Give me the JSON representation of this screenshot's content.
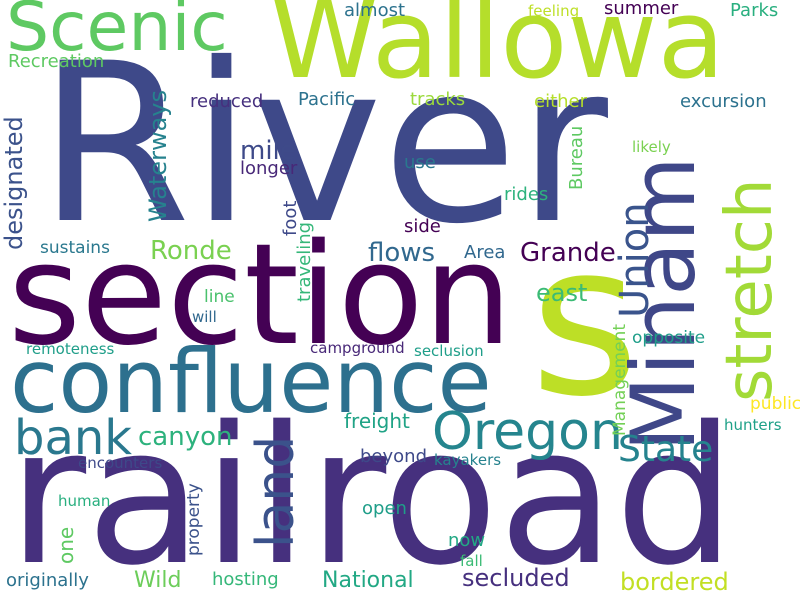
{
  "words": [
    {
      "text": "River",
      "color": "#3e4989"
    },
    {
      "text": "railroad",
      "color": "#46307e"
    },
    {
      "text": "section",
      "color": "#440154"
    },
    {
      "text": "Wallowa",
      "color": "#b5de2b"
    },
    {
      "text": "s",
      "color": "#bddf26"
    },
    {
      "text": "confluence",
      "color": "#2d708e"
    },
    {
      "text": "Scenic",
      "color": "#5ec962"
    },
    {
      "text": "Minam",
      "color": "#3f4788"
    },
    {
      "text": "stretch",
      "color": "#a2da37"
    },
    {
      "text": "Oregon",
      "color": "#25858e"
    },
    {
      "text": "bank",
      "color": "#2a788e"
    },
    {
      "text": "land",
      "color": "#3b528b"
    },
    {
      "text": "Union",
      "color": "#3a548c"
    },
    {
      "text": "State",
      "color": "#25838e"
    },
    {
      "text": "Grande",
      "color": "#440154"
    },
    {
      "text": "canyon",
      "color": "#2db27d"
    },
    {
      "text": "Ronde",
      "color": "#7ad151"
    },
    {
      "text": "flows",
      "color": "#31688e"
    },
    {
      "text": "designated",
      "color": "#3b528b"
    },
    {
      "text": "Waterways",
      "color": "#26828e"
    },
    {
      "text": "mile",
      "color": "#3e4a89"
    },
    {
      "text": "Recreation",
      "color": "#5ec962"
    },
    {
      "text": "almost",
      "color": "#2c728e"
    },
    {
      "text": "feeling",
      "color": "#bddf26"
    },
    {
      "text": "summer",
      "color": "#440154"
    },
    {
      "text": "Parks",
      "color": "#29af7f"
    },
    {
      "text": "reduced",
      "color": "#46307e"
    },
    {
      "text": "Pacific",
      "color": "#2c728e"
    },
    {
      "text": "tracks",
      "color": "#9bd93c"
    },
    {
      "text": "either",
      "color": "#b5de2b"
    },
    {
      "text": "excursion",
      "color": "#2c728e"
    },
    {
      "text": "longer",
      "color": "#482878"
    },
    {
      "text": "foot",
      "color": "#3e4989"
    },
    {
      "text": "traveling",
      "color": "#35b779"
    },
    {
      "text": "use",
      "color": "#2a788e"
    },
    {
      "text": "likely",
      "color": "#7ad151"
    },
    {
      "text": "Bureau",
      "color": "#5ec962"
    },
    {
      "text": "rides",
      "color": "#2db27d"
    },
    {
      "text": "side",
      "color": "#440154"
    },
    {
      "text": "sustains",
      "color": "#2a788e"
    },
    {
      "text": "Area",
      "color": "#31688e"
    },
    {
      "text": "east",
      "color": "#3bbb75"
    },
    {
      "text": "line",
      "color": "#4ac16d"
    },
    {
      "text": "will",
      "color": "#31688e"
    },
    {
      "text": "Management",
      "color": "#73d056"
    },
    {
      "text": "opposite",
      "color": "#1f9e89"
    },
    {
      "text": "remoteness",
      "color": "#1f9e89"
    },
    {
      "text": "campground",
      "color": "#482878"
    },
    {
      "text": "seclusion",
      "color": "#1f9e89"
    },
    {
      "text": "public",
      "color": "#fde725"
    },
    {
      "text": "hunters",
      "color": "#1fa188"
    },
    {
      "text": "freight",
      "color": "#20a386"
    },
    {
      "text": "beyond",
      "color": "#3e4989"
    },
    {
      "text": "encounters",
      "color": "#3e4989"
    },
    {
      "text": "kayakers",
      "color": "#26828e"
    },
    {
      "text": "human",
      "color": "#29af7f"
    },
    {
      "text": "property",
      "color": "#3b528b"
    },
    {
      "text": "one",
      "color": "#5ec962"
    },
    {
      "text": "open",
      "color": "#1f9e89"
    },
    {
      "text": "now",
      "color": "#22a884"
    },
    {
      "text": "fall",
      "color": "#3bbb75"
    },
    {
      "text": "originally",
      "color": "#2c728e"
    },
    {
      "text": "Wild",
      "color": "#6ccd5a"
    },
    {
      "text": "hosting",
      "color": "#35b779"
    },
    {
      "text": "National",
      "color": "#22a884"
    },
    {
      "text": "secluded",
      "color": "#46307e"
    },
    {
      "text": "bordered",
      "color": "#c2df23"
    }
  ]
}
